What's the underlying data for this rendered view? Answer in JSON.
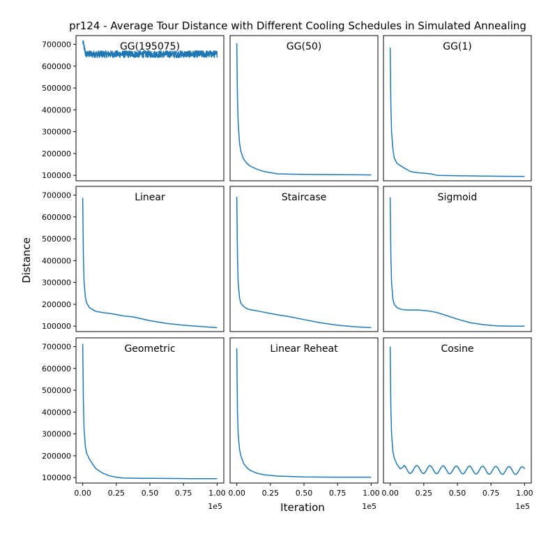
{
  "figure": {
    "suptitle": "pr124 - Average Tour Distance with Different Cooling Schedules in Simulated Annealing",
    "xlabel": "Iteration",
    "ylabel": "Distance",
    "x_offset_label": "1e5",
    "line_color": "#1f77b4"
  },
  "chart_data": {
    "type": "line",
    "layout": "3x3 grid, shared axes",
    "xlim": [
      -5000,
      105000
    ],
    "ylim": [
      75000,
      740000
    ],
    "x_ticks": [
      0,
      25000,
      50000,
      75000,
      100000
    ],
    "x_tick_labels": [
      "0.00",
      "0.25",
      "0.50",
      "0.75",
      "1.00"
    ],
    "y_ticks": [
      100000,
      200000,
      300000,
      400000,
      500000,
      600000,
      700000
    ],
    "y_tick_labels": [
      "100000",
      "200000",
      "300000",
      "400000",
      "500000",
      "600000",
      "700000"
    ],
    "panels": [
      {
        "title": "GG(195075)",
        "kind": "noisy",
        "x": [
          0,
          100000
        ],
        "y": [
          715000,
          655000
        ],
        "noise": 16000
      },
      {
        "title": "GG(50)",
        "x": [
          0,
          500,
          1000,
          2000,
          3000,
          5000,
          7500,
          10000,
          15000,
          20000,
          30000,
          50000,
          75000,
          100000
        ],
        "y": [
          705000,
          450000,
          340000,
          250000,
          210000,
          175000,
          155000,
          142000,
          128000,
          118000,
          107000,
          104000,
          103000,
          102000
        ]
      },
      {
        "title": "GG(1)",
        "x": [
          0,
          500,
          1000,
          2000,
          3000,
          5000,
          7500,
          10000,
          15000,
          20000,
          30000,
          35000,
          50000,
          75000,
          100000
        ],
        "y": [
          685000,
          420000,
          300000,
          220000,
          180000,
          155000,
          145000,
          135000,
          118000,
          112000,
          107000,
          100000,
          98000,
          96000,
          95000
        ]
      },
      {
        "title": "Linear",
        "x": [
          0,
          500,
          1000,
          2000,
          3000,
          5000,
          7500,
          10000,
          15000,
          20000,
          25000,
          30000,
          37500,
          50000,
          62500,
          75000,
          87500,
          100000
        ],
        "y": [
          688000,
          420000,
          300000,
          230000,
          205000,
          185000,
          175000,
          167000,
          162000,
          158000,
          153000,
          147000,
          142000,
          125000,
          112000,
          104000,
          98000,
          93000
        ]
      },
      {
        "title": "Staircase",
        "x": [
          0,
          500,
          1000,
          2000,
          3000,
          5000,
          7500,
          10000,
          15000,
          20000,
          25000,
          30000,
          37500,
          50000,
          62500,
          75000,
          87500,
          100000
        ],
        "y": [
          692000,
          420000,
          300000,
          230000,
          205000,
          190000,
          180000,
          175000,
          170000,
          164000,
          158000,
          152000,
          145000,
          130000,
          115000,
          104000,
          97000,
          93000
        ]
      },
      {
        "title": "Sigmoid",
        "x": [
          0,
          500,
          1000,
          2000,
          3000,
          5000,
          7500,
          10000,
          15000,
          20000,
          25000,
          30000,
          35000,
          40000,
          50000,
          60000,
          70000,
          80000,
          90000,
          100000
        ],
        "y": [
          690000,
          420000,
          300000,
          225000,
          200000,
          185000,
          178000,
          175000,
          173000,
          174000,
          172000,
          168000,
          162000,
          152000,
          132000,
          115000,
          106000,
          101000,
          100000,
          100000
        ]
      },
      {
        "title": "Geometric",
        "x": [
          0,
          500,
          1000,
          2000,
          3000,
          5000,
          7500,
          10000,
          15000,
          20000,
          25000,
          30000,
          40000,
          60000,
          80000,
          100000
        ],
        "y": [
          712000,
          450000,
          320000,
          240000,
          210000,
          185000,
          160000,
          140000,
          120000,
          108000,
          102000,
          98000,
          97000,
          96000,
          95000,
          95000
        ]
      },
      {
        "title": "Linear Reheat",
        "x": [
          0,
          500,
          1000,
          2000,
          3000,
          5000,
          7500,
          10000,
          15000,
          20000,
          30000,
          50000,
          75000,
          100000
        ],
        "y": [
          692000,
          400000,
          300000,
          230000,
          200000,
          165000,
          145000,
          133000,
          120000,
          113000,
          107000,
          103000,
          102000,
          102000
        ]
      },
      {
        "title": "Cosine",
        "kind": "cosine",
        "x": [
          0,
          500,
          1000,
          2000,
          3000,
          5000,
          7500,
          10000
        ],
        "y": [
          700000,
          420000,
          300000,
          220000,
          190000,
          160000,
          140000,
          150000
        ],
        "cosine": {
          "start": 10000,
          "period": 9800,
          "center": 138000,
          "amplitude": 18000
        }
      }
    ]
  }
}
